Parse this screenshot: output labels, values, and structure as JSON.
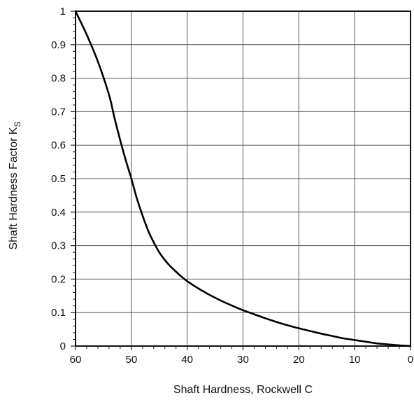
{
  "chart_data": {
    "type": "line",
    "xlabel": "Shaft Hardness, Rockwell C",
    "ylabel_main": "Shaft Hardness Factor K",
    "ylabel_sub": "S",
    "xlim": [
      60,
      0
    ],
    "ylim": [
      0,
      1
    ],
    "x_reversed": true,
    "grid": true,
    "x_ticks": [
      60,
      50,
      40,
      30,
      20,
      10,
      0
    ],
    "x_tick_labels": [
      "60",
      "50",
      "40",
      "30",
      "20",
      "10",
      "0"
    ],
    "y_ticks": [
      0,
      0.1,
      0.2,
      0.3,
      0.4,
      0.5,
      0.6,
      0.7,
      0.8,
      0.9,
      1
    ],
    "y_tick_labels": [
      "0",
      "0.1",
      "0.2",
      "0.3",
      "0.4",
      "0.5",
      "0.6",
      "0.7",
      "0.8",
      "0.9",
      "1"
    ],
    "series": [
      {
        "color": "#000000",
        "x": [
          60,
          58,
          56,
          54,
          53,
          52,
          51,
          50,
          49,
          48,
          47,
          46,
          45,
          44,
          43,
          42,
          41,
          40,
          38,
          36,
          34,
          32,
          30,
          28,
          26,
          24,
          22,
          20,
          18,
          16,
          14,
          12,
          10,
          8,
          6,
          4,
          2,
          0
        ],
        "y": [
          1.0,
          0.93,
          0.85,
          0.75,
          0.68,
          0.615,
          0.555,
          0.5,
          0.44,
          0.39,
          0.345,
          0.31,
          0.28,
          0.257,
          0.238,
          0.222,
          0.207,
          0.194,
          0.172,
          0.153,
          0.136,
          0.121,
          0.107,
          0.095,
          0.083,
          0.072,
          0.062,
          0.053,
          0.045,
          0.037,
          0.03,
          0.023,
          0.018,
          0.013,
          0.008,
          0.005,
          0.002,
          0.0
        ]
      }
    ]
  }
}
